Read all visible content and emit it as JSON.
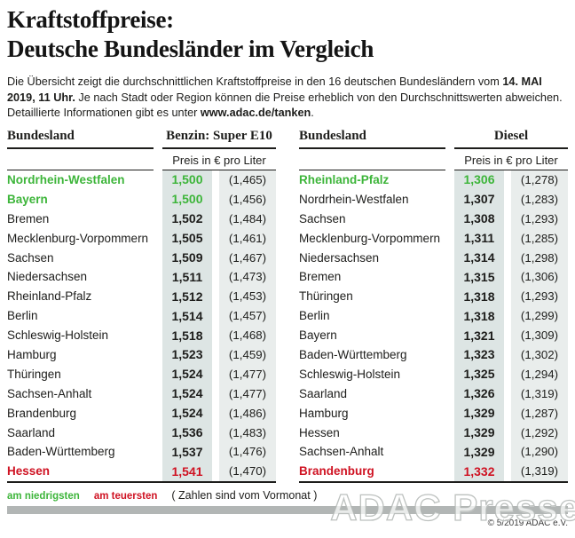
{
  "title": {
    "line1": "Kraftstoffpreise:",
    "line2": "Deutsche Bundesländer im Vergleich"
  },
  "intro": {
    "part1": "Die Übersicht zeigt die durchschnittlichen Kraftstoffpreise in den 16 deutschen Bundesländern vom ",
    "bold1": "14. MAI 2019, 11 Uhr.",
    "part2": " Je nach Stadt oder Region können die Preise erheblich von den Durchschnittswerten abweichen. Detaillierte Informationen gibt es unter ",
    "bold2": "www.adac.de/tanken",
    "part3": "."
  },
  "tables": [
    {
      "name_header": "Bundesland",
      "fuel_header": "Benzin: Super E10",
      "unit_header": "Preis in € pro Liter",
      "rows": [
        {
          "name": "Nordrhein-Westfalen",
          "price": "1,500",
          "prev": "(1,465)",
          "highlight": "green"
        },
        {
          "name": "Bayern",
          "price": "1,500",
          "prev": "(1,456)",
          "highlight": "green"
        },
        {
          "name": "Bremen",
          "price": "1,502",
          "prev": "(1,484)",
          "highlight": ""
        },
        {
          "name": "Mecklenburg-Vorpommern",
          "price": "1,505",
          "prev": "(1,461)",
          "highlight": ""
        },
        {
          "name": "Sachsen",
          "price": "1,509",
          "prev": "(1,467)",
          "highlight": ""
        },
        {
          "name": "Niedersachsen",
          "price": "1,511",
          "prev": "(1,473)",
          "highlight": ""
        },
        {
          "name": "Rheinland-Pfalz",
          "price": "1,512",
          "prev": "(1,453)",
          "highlight": ""
        },
        {
          "name": "Berlin",
          "price": "1,514",
          "prev": "(1,457)",
          "highlight": ""
        },
        {
          "name": "Schleswig-Holstein",
          "price": "1,518",
          "prev": "(1,468)",
          "highlight": ""
        },
        {
          "name": "Hamburg",
          "price": "1,523",
          "prev": "(1,459)",
          "highlight": ""
        },
        {
          "name": "Thüringen",
          "price": "1,524",
          "prev": "(1,477)",
          "highlight": ""
        },
        {
          "name": "Sachsen-Anhalt",
          "price": "1,524",
          "prev": "(1,477)",
          "highlight": ""
        },
        {
          "name": "Brandenburg",
          "price": "1,524",
          "prev": "(1,486)",
          "highlight": ""
        },
        {
          "name": "Saarland",
          "price": "1,536",
          "prev": "(1,483)",
          "highlight": ""
        },
        {
          "name": "Baden-Württemberg",
          "price": "1,537",
          "prev": "(1,476)",
          "highlight": ""
        },
        {
          "name": "Hessen",
          "price": "1,541",
          "prev": "(1,470)",
          "highlight": "red"
        }
      ]
    },
    {
      "name_header": "Bundesland",
      "fuel_header": "Diesel",
      "unit_header": "Preis in € pro Liter",
      "rows": [
        {
          "name": "Rheinland-Pfalz",
          "price": "1,306",
          "prev": "(1,278)",
          "highlight": "green"
        },
        {
          "name": "Nordrhein-Westfalen",
          "price": "1,307",
          "prev": "(1,283)",
          "highlight": ""
        },
        {
          "name": "Sachsen",
          "price": "1,308",
          "prev": "(1,293)",
          "highlight": ""
        },
        {
          "name": "Mecklenburg-Vorpommern",
          "price": "1,311",
          "prev": "(1,285)",
          "highlight": ""
        },
        {
          "name": "Niedersachsen",
          "price": "1,314",
          "prev": "(1,298)",
          "highlight": ""
        },
        {
          "name": "Bremen",
          "price": "1,315",
          "prev": "(1,306)",
          "highlight": ""
        },
        {
          "name": "Thüringen",
          "price": "1,318",
          "prev": "(1,293)",
          "highlight": ""
        },
        {
          "name": "Berlin",
          "price": "1,318",
          "prev": "(1,299)",
          "highlight": ""
        },
        {
          "name": "Bayern",
          "price": "1,321",
          "prev": "(1,309)",
          "highlight": ""
        },
        {
          "name": "Baden-Württemberg",
          "price": "1,323",
          "prev": "(1,302)",
          "highlight": ""
        },
        {
          "name": "Schleswig-Holstein",
          "price": "1,325",
          "prev": "(1,294)",
          "highlight": ""
        },
        {
          "name": "Saarland",
          "price": "1,326",
          "prev": "(1,319)",
          "highlight": ""
        },
        {
          "name": "Hamburg",
          "price": "1,329",
          "prev": "(1,287)",
          "highlight": ""
        },
        {
          "name": "Hessen",
          "price": "1,329",
          "prev": "(1,292)",
          "highlight": ""
        },
        {
          "name": "Sachsen-Anhalt",
          "price": "1,329",
          "prev": "(1,290)",
          "highlight": ""
        },
        {
          "name": "Brandenburg",
          "price": "1,332",
          "prev": "(1,319)",
          "highlight": "red"
        }
      ]
    }
  ],
  "legend": {
    "lowest": "am niedrigsten",
    "highest": "am teuersten",
    "note": "( Zahlen sind vom Vormonat )"
  },
  "watermark": "ADAC Presse",
  "copyright": "© 5/2019 ADAC e.V.",
  "colors": {
    "green": "#3db53a",
    "red": "#cf1222",
    "col1_bg": "#dde5e4",
    "col2_bg": "#e9edec",
    "bar": "#b2b6b5"
  },
  "chart_data": [
    {
      "type": "table",
      "title": "Benzin: Super E10 — Preis in € pro Liter (14. Mai 2019, 11 Uhr)",
      "columns": [
        "Bundesland",
        "Preis",
        "Vormonat"
      ],
      "rows": [
        [
          "Nordrhein-Westfalen",
          1.5,
          1.465
        ],
        [
          "Bayern",
          1.5,
          1.456
        ],
        [
          "Bremen",
          1.502,
          1.484
        ],
        [
          "Mecklenburg-Vorpommern",
          1.505,
          1.461
        ],
        [
          "Sachsen",
          1.509,
          1.467
        ],
        [
          "Niedersachsen",
          1.511,
          1.473
        ],
        [
          "Rheinland-Pfalz",
          1.512,
          1.453
        ],
        [
          "Berlin",
          1.514,
          1.457
        ],
        [
          "Schleswig-Holstein",
          1.518,
          1.468
        ],
        [
          "Hamburg",
          1.523,
          1.459
        ],
        [
          "Thüringen",
          1.524,
          1.477
        ],
        [
          "Sachsen-Anhalt",
          1.524,
          1.477
        ],
        [
          "Brandenburg",
          1.524,
          1.486
        ],
        [
          "Saarland",
          1.536,
          1.483
        ],
        [
          "Baden-Württemberg",
          1.537,
          1.476
        ],
        [
          "Hessen",
          1.541,
          1.47
        ]
      ],
      "annotations": {
        "lowest": [
          "Nordrhein-Westfalen",
          "Bayern"
        ],
        "highest": [
          "Hessen"
        ]
      }
    },
    {
      "type": "table",
      "title": "Diesel — Preis in € pro Liter (14. Mai 2019, 11 Uhr)",
      "columns": [
        "Bundesland",
        "Preis",
        "Vormonat"
      ],
      "rows": [
        [
          "Rheinland-Pfalz",
          1.306,
          1.278
        ],
        [
          "Nordrhein-Westfalen",
          1.307,
          1.283
        ],
        [
          "Sachsen",
          1.308,
          1.293
        ],
        [
          "Mecklenburg-Vorpommern",
          1.311,
          1.285
        ],
        [
          "Niedersachsen",
          1.314,
          1.298
        ],
        [
          "Bremen",
          1.315,
          1.306
        ],
        [
          "Thüringen",
          1.318,
          1.293
        ],
        [
          "Berlin",
          1.318,
          1.299
        ],
        [
          "Bayern",
          1.321,
          1.309
        ],
        [
          "Baden-Württemberg",
          1.323,
          1.302
        ],
        [
          "Schleswig-Holstein",
          1.325,
          1.294
        ],
        [
          "Saarland",
          1.326,
          1.319
        ],
        [
          "Hamburg",
          1.329,
          1.287
        ],
        [
          "Hessen",
          1.329,
          1.292
        ],
        [
          "Sachsen-Anhalt",
          1.329,
          1.29
        ],
        [
          "Brandenburg",
          1.332,
          1.319
        ]
      ],
      "annotations": {
        "lowest": [
          "Rheinland-Pfalz"
        ],
        "highest": [
          "Brandenburg"
        ]
      }
    }
  ]
}
